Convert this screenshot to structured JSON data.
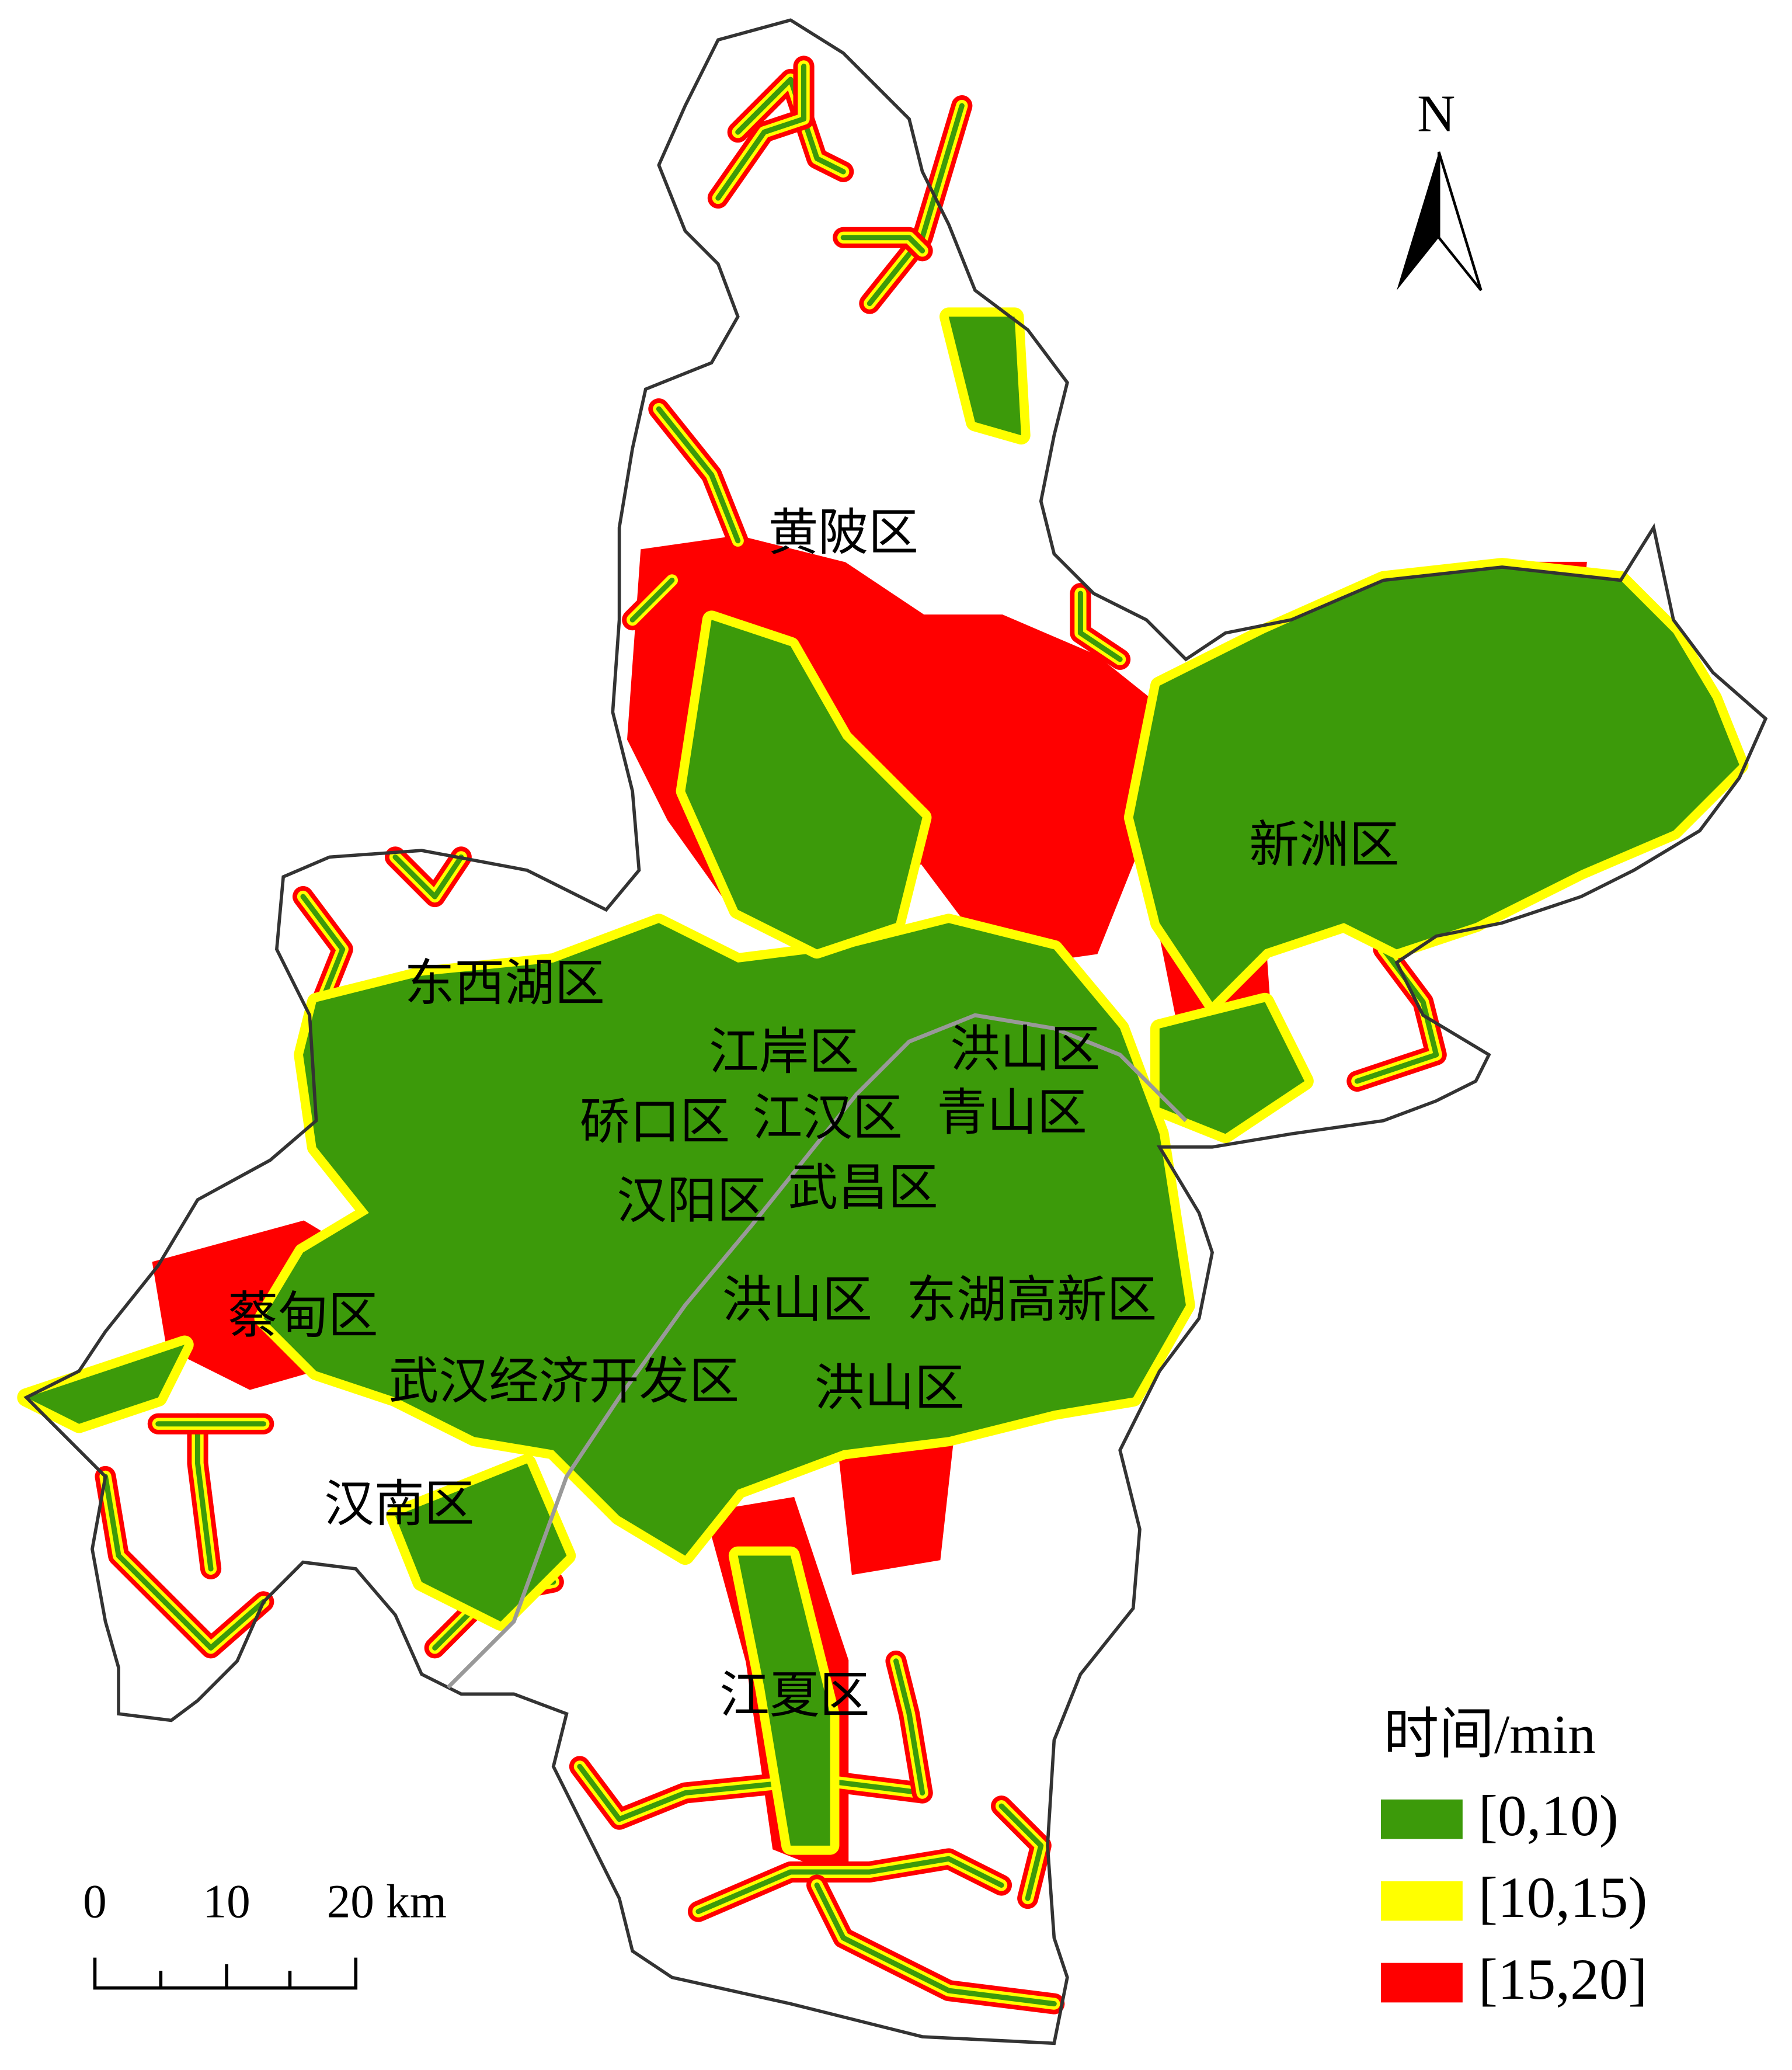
{
  "north_arrow": "N",
  "districts": [
    "黄陂区",
    "新洲区",
    "东西湖区",
    "江岸区",
    "洪山区",
    "硚口区",
    "江汉区",
    "青山区",
    "汉阳区",
    "武昌区",
    "洪山区",
    "东湖高新区",
    "蔡甸区",
    "武汉经济开发区",
    "洪山区",
    "汉南区",
    "江夏区"
  ],
  "legend": {
    "title": "时间/min",
    "items": [
      {
        "label": "[0,10)",
        "color": "#3c9a0a"
      },
      {
        "label": "[10,15)",
        "color": "#ffff00"
      },
      {
        "label": "[15,20]",
        "color": "#ff0000"
      }
    ]
  },
  "scale_bar": {
    "labels": [
      "0",
      "10",
      "20 km"
    ]
  }
}
